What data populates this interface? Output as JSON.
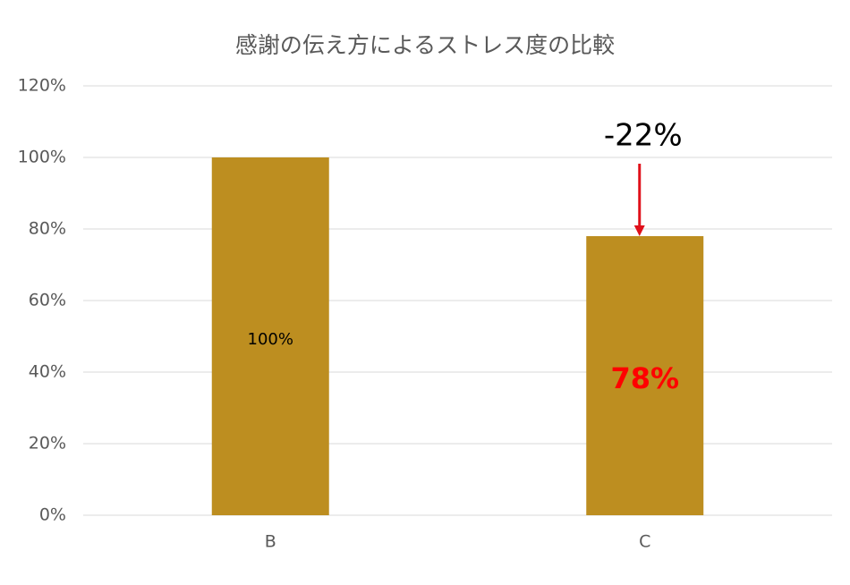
{
  "chart_data": {
    "type": "bar",
    "title": "感謝の伝え方によるストレス度の比較",
    "categories": [
      "B",
      "C"
    ],
    "values": [
      100,
      78
    ],
    "value_labels": [
      "100%",
      "78%"
    ],
    "color": "#bd8e20",
    "ylim": [
      0,
      120
    ],
    "yticks": [
      {
        "value": 0,
        "label": "0%"
      },
      {
        "value": 20,
        "label": "20%"
      },
      {
        "value": 40,
        "label": "40%"
      },
      {
        "value": 60,
        "label": "60%"
      },
      {
        "value": 80,
        "label": "80%"
      },
      {
        "value": 100,
        "label": "100%"
      },
      {
        "value": 120,
        "label": "120%"
      }
    ],
    "grid": true,
    "annotations": [
      {
        "text": "-22%"
      }
    ]
  }
}
